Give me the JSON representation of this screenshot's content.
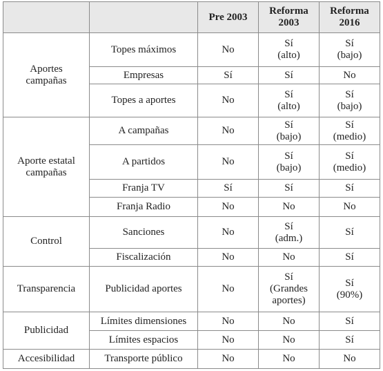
{
  "table": {
    "header": [
      "Pre 2003",
      "Reforma\n2003",
      "Reforma\n2016"
    ],
    "groups": [
      {
        "label": "Aportes\ncampañas",
        "rows": [
          [
            "Topes máximos",
            "No",
            "Sí\n(alto)",
            "Sí\n(bajo)"
          ],
          [
            "Empresas",
            "Sí",
            "Sí",
            "No"
          ],
          [
            "Topes a aportes",
            "No",
            "Sí\n(alto)",
            "Sí\n(bajo)"
          ]
        ]
      },
      {
        "label": "Aporte estatal\ncampañas",
        "rows": [
          [
            "A campañas",
            "No",
            "Sí\n(bajo)",
            "Sí\n(medio)"
          ],
          [
            "A partidos",
            "No",
            "Sí\n(bajo)",
            "Sí\n(medio)"
          ],
          [
            "Franja TV",
            "Sí",
            "Sí",
            "Sí"
          ],
          [
            "Franja Radio",
            "No",
            "No",
            "No"
          ]
        ]
      },
      {
        "label": "Control",
        "rows": [
          [
            "Sanciones",
            "No",
            "Sí\n(adm.)",
            "Sí"
          ],
          [
            "Fiscalización",
            "No",
            "No",
            "Sí"
          ]
        ]
      },
      {
        "label": "Transparencia",
        "rows": [
          [
            "Publicidad aportes",
            "No",
            "Sí\n(Grandes\naportes)",
            "Sí\n(90%)"
          ]
        ]
      },
      {
        "label": "Publicidad",
        "rows": [
          [
            "Límites dimensiones",
            "No",
            "No",
            "Sí"
          ],
          [
            "Límites espacios",
            "No",
            "No",
            "Sí"
          ]
        ]
      },
      {
        "label": "Accesibilidad",
        "rows": [
          [
            "Transporte público",
            "No",
            "No",
            "No"
          ]
        ]
      }
    ]
  }
}
